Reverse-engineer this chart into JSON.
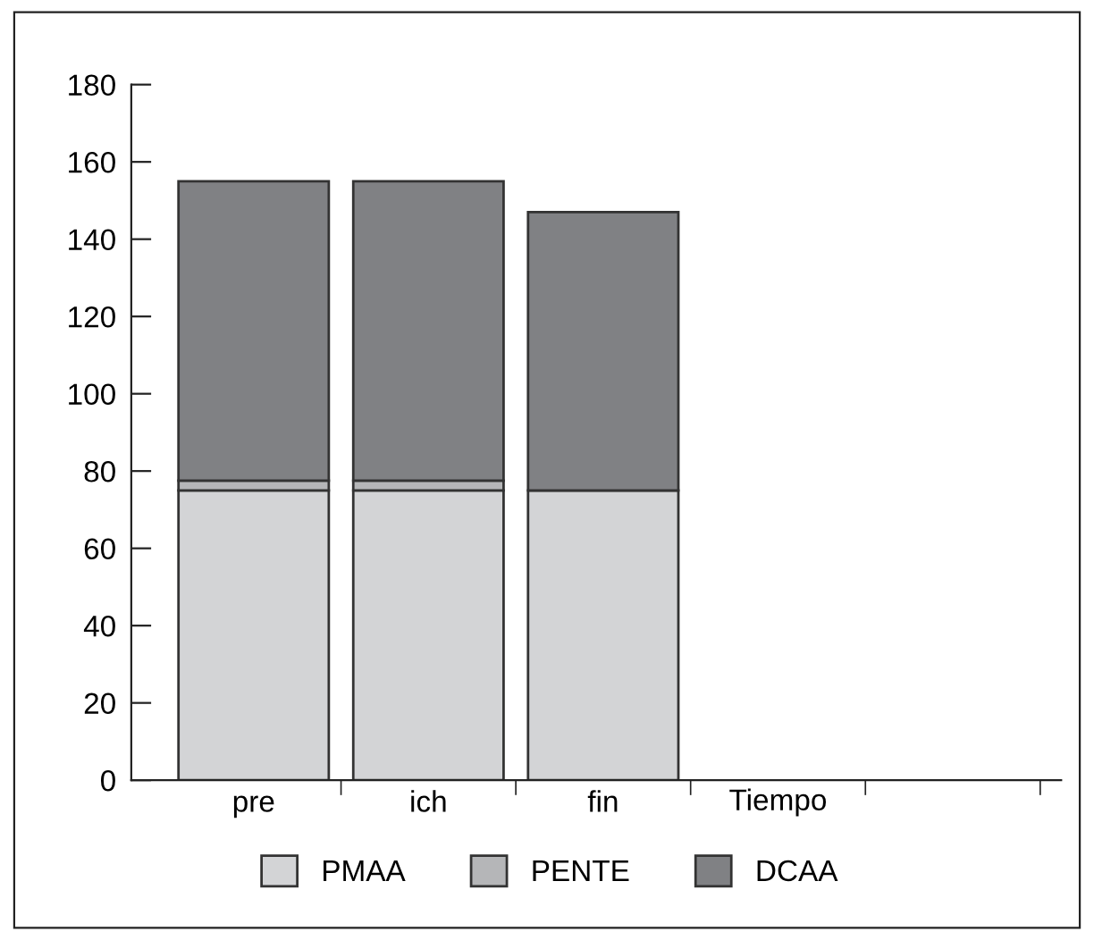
{
  "chart_data": {
    "type": "bar",
    "stacked": true,
    "xlabel": "Tiempo",
    "categories": [
      "pre",
      "ich",
      "fin"
    ],
    "series": [
      {
        "name": "PMAA",
        "color": "#d3d4d6",
        "values": [
          75,
          75,
          75
        ]
      },
      {
        "name": "PENTE",
        "color": "#b5b6b8",
        "values": [
          2.5,
          2.5,
          0
        ]
      },
      {
        "name": "DCAA",
        "color": "#808184",
        "values": [
          77.5,
          77.5,
          72
        ]
      }
    ],
    "ylim": [
      0,
      180
    ],
    "yticks": [
      0,
      20,
      40,
      60,
      80,
      100,
      120,
      140,
      160,
      180
    ],
    "grid": false,
    "legend": "bottom"
  }
}
